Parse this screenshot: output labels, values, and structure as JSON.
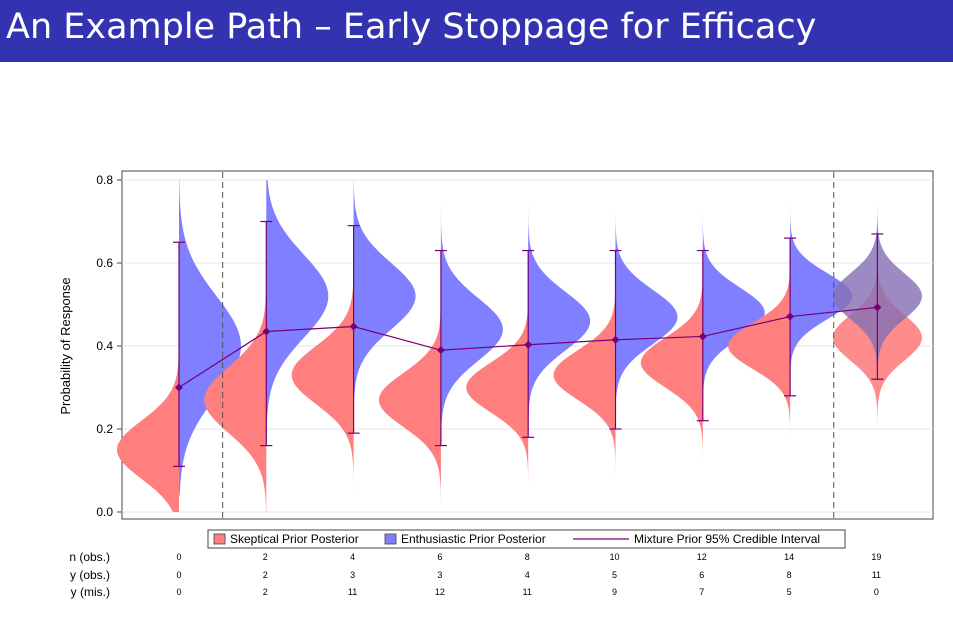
{
  "slide": {
    "title": "An Example Path – Early Stoppage for Efficacy",
    "title_bar_color": "#3333b2"
  },
  "chart_data": {
    "type": "violin",
    "ylabel": "Probability of Response",
    "ylim": [
      0.0,
      0.8
    ],
    "yticks": [
      0.0,
      0.2,
      0.4,
      0.6,
      0.8
    ],
    "yticklabels": [
      "0.0",
      "0.2",
      "0.4",
      "0.6",
      "0.8"
    ],
    "grid": true,
    "colors": {
      "skeptical": "#ff7f7f",
      "enthusiastic": "#7f7fff",
      "mixture": "#770077",
      "final_overlap": "#8b6a99",
      "dashed_line": "#555555"
    },
    "legend": {
      "position": "bottom",
      "entries": [
        {
          "label": "Skeptical Prior Posterior",
          "kind": "box",
          "color": "#ff7f7f"
        },
        {
          "label": "Enthusiastic Prior Posterior",
          "kind": "box",
          "color": "#7f7fff"
        },
        {
          "label": "Mixture Prior 95% Credible Interval",
          "kind": "line",
          "color": "#770077"
        }
      ]
    },
    "dashed_after_looks": [
      0,
      7
    ],
    "looks": [
      {
        "n": "0",
        "y_obs": "0",
        "y_mis": "0",
        "mean": 0.3,
        "lower": 0.11,
        "upper": 0.65,
        "skeptical": {
          "mode": 0.15,
          "sd": 0.07,
          "min": 0.0,
          "max": 0.52
        },
        "enthusiastic": {
          "mode": 0.4,
          "sd": 0.12,
          "min": 0.04,
          "max": 0.8
        }
      },
      {
        "n": "2",
        "y_obs": "2",
        "y_mis": "2",
        "mean": 0.435,
        "lower": 0.16,
        "upper": 0.7,
        "skeptical": {
          "mode": 0.27,
          "sd": 0.08,
          "min": 0.0,
          "max": 0.67
        },
        "enthusiastic": {
          "mode": 0.52,
          "sd": 0.1,
          "min": 0.12,
          "max": 0.8
        }
      },
      {
        "n": "4",
        "y_obs": "3",
        "y_mis": "11",
        "mean": 0.447,
        "lower": 0.19,
        "upper": 0.69,
        "skeptical": {
          "mode": 0.33,
          "sd": 0.07,
          "min": 0.0,
          "max": 0.67
        },
        "enthusiastic": {
          "mode": 0.52,
          "sd": 0.08,
          "min": 0.18,
          "max": 0.8
        }
      },
      {
        "n": "6",
        "y_obs": "3",
        "y_mis": "12",
        "mean": 0.39,
        "lower": 0.16,
        "upper": 0.63,
        "skeptical": {
          "mode": 0.27,
          "sd": 0.065,
          "min": 0.0,
          "max": 0.58
        },
        "enthusiastic": {
          "mode": 0.44,
          "sd": 0.075,
          "min": 0.16,
          "max": 0.8
        }
      },
      {
        "n": "8",
        "y_obs": "4",
        "y_mis": "11",
        "mean": 0.403,
        "lower": 0.18,
        "upper": 0.63,
        "skeptical": {
          "mode": 0.3,
          "sd": 0.06,
          "min": 0.0,
          "max": 0.57
        },
        "enthusiastic": {
          "mode": 0.46,
          "sd": 0.07,
          "min": 0.18,
          "max": 0.8
        }
      },
      {
        "n": "10",
        "y_obs": "5",
        "y_mis": "9",
        "mean": 0.415,
        "lower": 0.2,
        "upper": 0.63,
        "skeptical": {
          "mode": 0.33,
          "sd": 0.06,
          "min": 0.0,
          "max": 0.59
        },
        "enthusiastic": {
          "mode": 0.47,
          "sd": 0.065,
          "min": 0.2,
          "max": 0.8
        }
      },
      {
        "n": "12",
        "y_obs": "6",
        "y_mis": "7",
        "mean": 0.423,
        "lower": 0.22,
        "upper": 0.63,
        "skeptical": {
          "mode": 0.36,
          "sd": 0.06,
          "min": 0.0,
          "max": 0.61
        },
        "enthusiastic": {
          "mode": 0.48,
          "sd": 0.06,
          "min": 0.21,
          "max": 0.8
        }
      },
      {
        "n": "14",
        "y_obs": "8",
        "y_mis": "5",
        "mean": 0.471,
        "lower": 0.28,
        "upper": 0.66,
        "skeptical": {
          "mode": 0.4,
          "sd": 0.055,
          "min": 0.0,
          "max": 0.65
        },
        "enthusiastic": {
          "mode": 0.52,
          "sd": 0.055,
          "min": 0.25,
          "max": 0.8
        }
      },
      {
        "n": "19",
        "y_obs": "11",
        "y_mis": "0",
        "mean": 0.493,
        "lower": 0.32,
        "upper": 0.67,
        "skeptical": {
          "mode": 0.42,
          "sd": 0.055,
          "min": 0.0,
          "max": 0.8
        },
        "enthusiastic": {
          "mode": 0.52,
          "sd": 0.055,
          "min": 0.0,
          "max": 0.8
        }
      }
    ],
    "table": {
      "row_labels": [
        "n (obs.)",
        "y (obs.)",
        "y (mis.)"
      ]
    }
  }
}
